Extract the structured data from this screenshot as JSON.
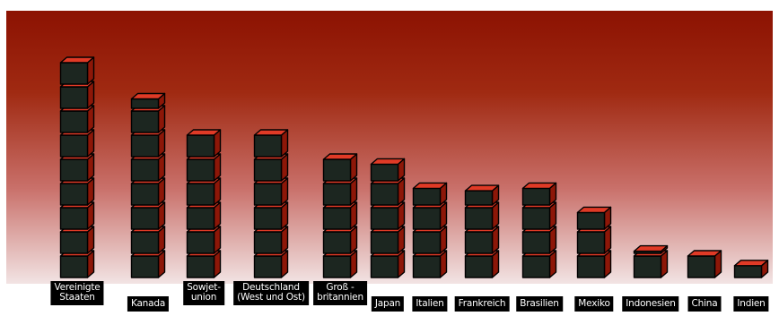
{
  "chart_data": {
    "type": "bar",
    "title": "",
    "xlabel": "",
    "ylabel": "",
    "ylim": [
      0,
      10
    ],
    "grid": false,
    "legend": "none",
    "categories": [
      "Vereinigte\nStaaten",
      "Kanada",
      "Sowjet-\nunion",
      "Deutschland\n(West und Ost)",
      "Groß -\nbritannien",
      "Japan",
      "Italien",
      "Frankreich",
      "Brasilien",
      "Mexiko",
      "Indonesien",
      "China",
      "Indien"
    ],
    "values": [
      9,
      7.5,
      6,
      6,
      5,
      4.8,
      3.8,
      3.7,
      3.8,
      2.8,
      1.2,
      1,
      0.6
    ],
    "colors": {
      "cube_front": "#1c2620",
      "cube_top": "#e03a26",
      "cube_side": "#8d1708",
      "cube_outline": "#000000",
      "background_top": "#8c1202",
      "background_bottom": "#f2e4e4",
      "label_bg": "#000000",
      "label_text": "#ffffff"
    }
  }
}
